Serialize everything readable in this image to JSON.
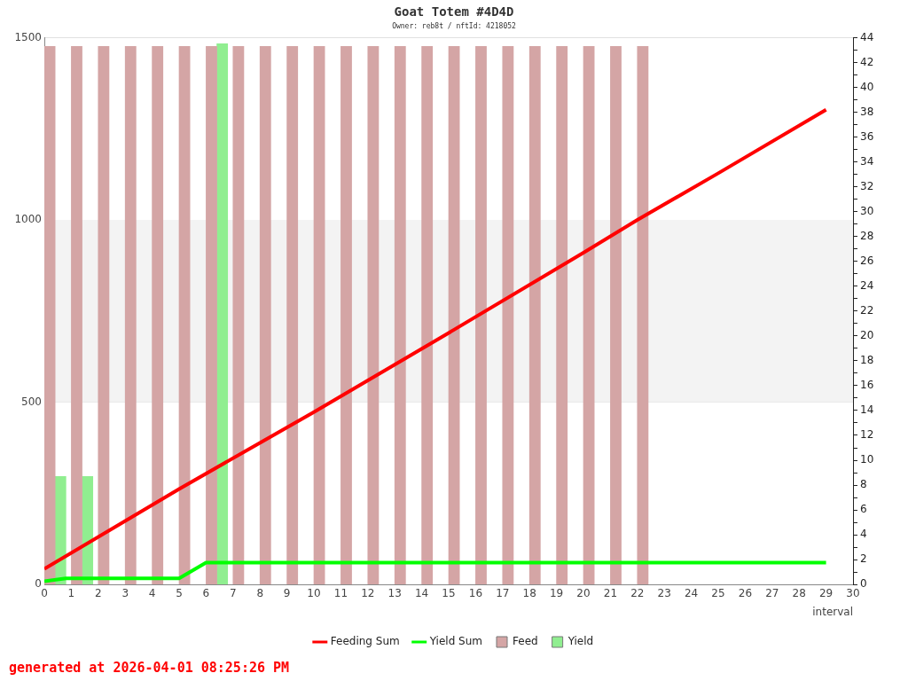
{
  "chart_data": {
    "type": "bar",
    "title": "Goat Totem #4D4D",
    "subtitle": "Owner: reb8t / nftId: 4218052",
    "xlabel": "interval",
    "annotations": [
      "generated at 2026-04-01 08:25:26 PM"
    ],
    "xlim": [
      0,
      30
    ],
    "xticks": [
      0,
      1,
      2,
      3,
      4,
      5,
      6,
      7,
      8,
      9,
      10,
      11,
      12,
      13,
      14,
      15,
      16,
      17,
      18,
      19,
      20,
      21,
      22,
      23,
      24,
      25,
      26,
      27,
      28,
      29,
      30
    ],
    "ylim": [
      0,
      1500
    ],
    "yticks": [
      0,
      500,
      1000,
      1500
    ],
    "y2lim": [
      0,
      44
    ],
    "y2ticks": [
      0,
      {
        "value": 1,
        "label": null
      },
      2,
      {
        "value": 3,
        "label": null
      },
      4,
      {
        "value": 5,
        "label": null
      },
      6,
      {
        "value": 7,
        "label": null
      },
      8,
      {
        "value": 9,
        "label": null
      },
      10,
      {
        "value": 11,
        "label": null
      },
      12,
      {
        "value": 13,
        "label": null
      },
      14,
      {
        "value": 15,
        "label": null
      },
      16,
      {
        "value": 17,
        "label": null
      },
      18,
      {
        "value": 19,
        "label": null
      },
      20,
      {
        "value": 21,
        "label": null
      },
      22,
      {
        "value": 23,
        "label": null
      },
      24,
      {
        "value": 25,
        "label": null
      },
      26,
      {
        "value": 27,
        "label": null
      },
      28,
      {
        "value": 29,
        "label": null
      },
      30,
      {
        "value": 31,
        "label": null
      },
      32,
      {
        "value": 33,
        "label": null
      },
      34,
      {
        "value": 35,
        "label": null
      },
      36,
      {
        "value": 37,
        "label": null
      },
      38,
      {
        "value": 39,
        "label": null
      },
      40,
      {
        "value": 41,
        "label": null
      },
      42,
      {
        "value": 43,
        "label": null
      },
      44
    ],
    "bands": [
      {
        "axis": "y",
        "from": 500,
        "to": 1000,
        "color": "#f3f3f3"
      }
    ],
    "grid": "y",
    "legend": "bottom",
    "series": [
      {
        "name": "Feeding Sum",
        "type": "line",
        "color": "#ff0000",
        "x": [
          0,
          5,
          10,
          15,
          20,
          22,
          25,
          29
        ],
        "values": [
          43,
          262,
          473,
          690,
          910,
          1000,
          1128,
          1302
        ]
      },
      {
        "name": "Yield Sum",
        "type": "line",
        "color": "#00ff00",
        "x": [
          0,
          0.8,
          5,
          6,
          29
        ],
        "values": [
          9,
          17,
          17,
          60,
          60
        ]
      },
      {
        "name": "Feed",
        "axis": "y2",
        "color": "#d4a5a5",
        "x": [
          0.2,
          1.2,
          2.2,
          3.2,
          4.2,
          5.2,
          6.2,
          7.2,
          8.2,
          9.2,
          10.2,
          11.2,
          12.2,
          13.2,
          14.2,
          15.2,
          16.2,
          17.2,
          18.2,
          19.2,
          20.2,
          21.2,
          22.2
        ],
        "values": [
          43.3,
          43.3,
          43.3,
          43.3,
          43.3,
          43.3,
          43.3,
          43.3,
          43.3,
          43.3,
          43.3,
          43.3,
          43.3,
          43.3,
          43.3,
          43.3,
          43.3,
          43.3,
          43.3,
          43.3,
          43.3,
          43.3,
          43.3
        ]
      },
      {
        "name": "Yield",
        "axis": "y2",
        "color": "#90ee90",
        "x": [
          0.6,
          1.6,
          6.6
        ],
        "values": [
          8.7,
          8.7,
          43.5
        ]
      }
    ]
  }
}
